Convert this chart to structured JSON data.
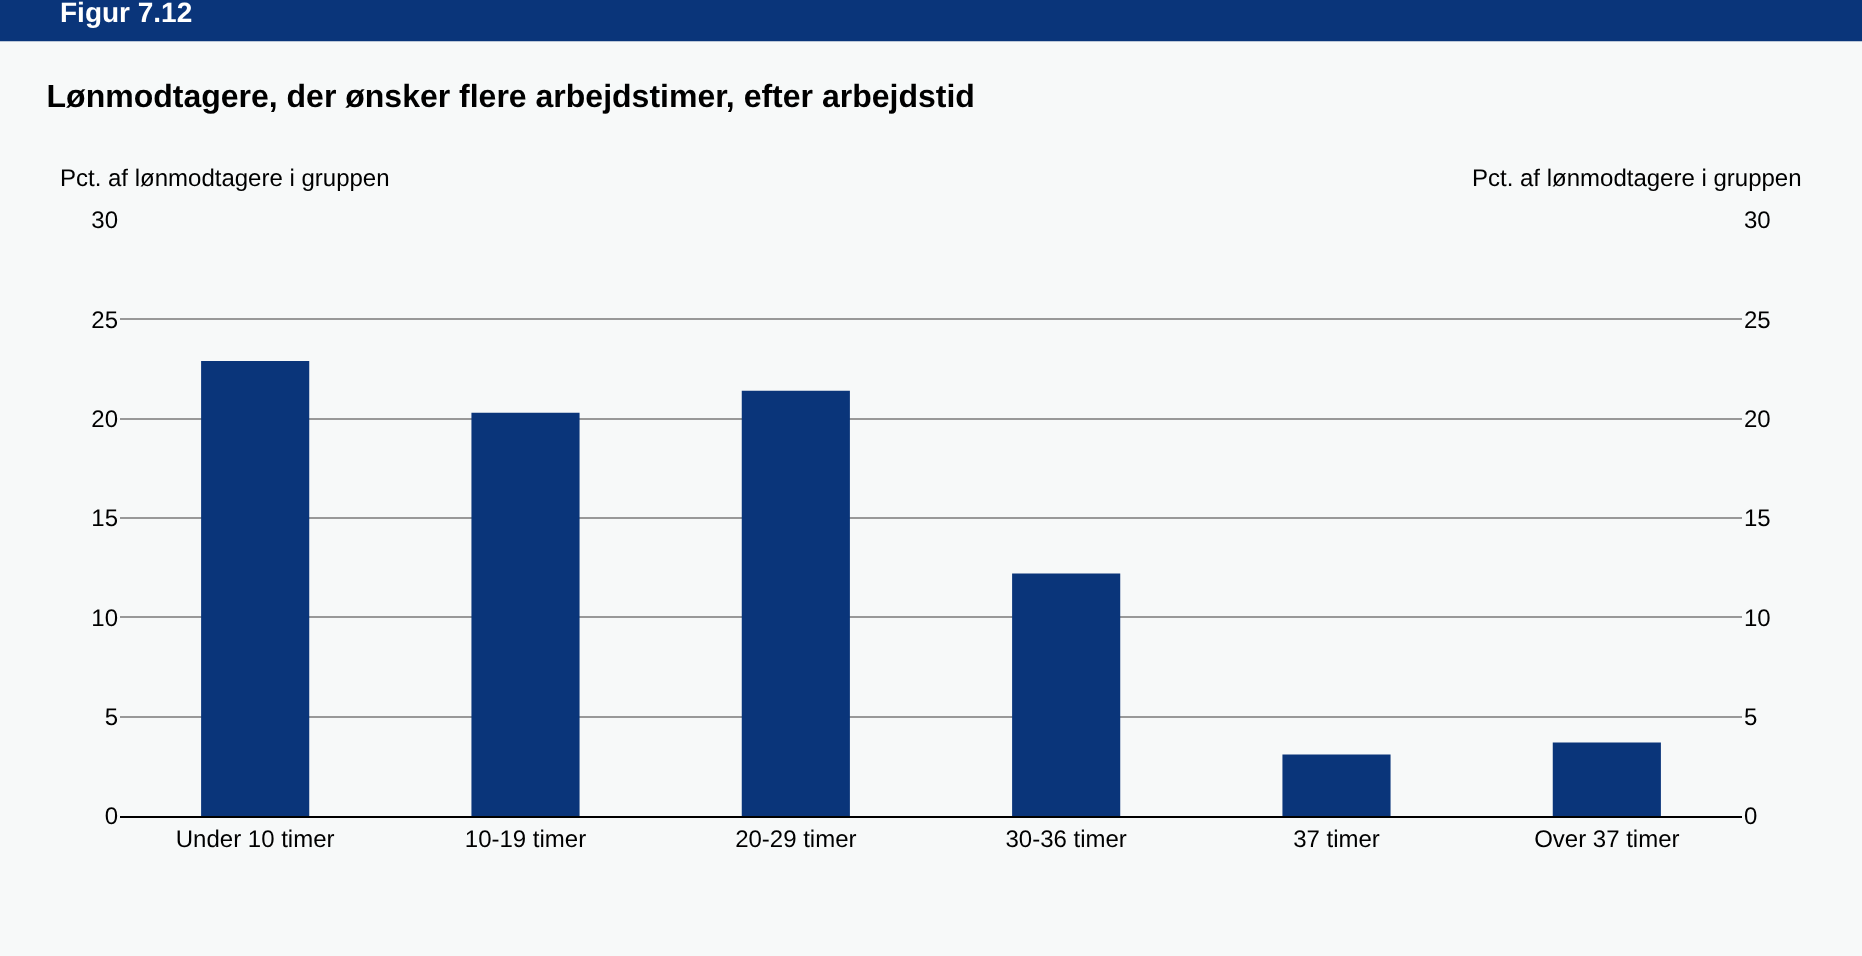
{
  "chart_data": {
    "type": "bar",
    "title": "Lønmodtagere, der ønsker flere arbejdstimer, efter arbejdstid",
    "annotations": [
      "Figur 7.12"
    ],
    "ylabel": "Pct. af lønmodtagere i gruppen",
    "y2label": "Pct. af lønmodtagere i gruppen",
    "categories": [
      "Under 10 timer",
      "10-19 timer",
      "20-29 timer",
      "30-36 timer",
      "37 timer",
      "Over 37 timer"
    ],
    "values": [
      22.9,
      20.3,
      21.4,
      12.2,
      3.1,
      3.7
    ],
    "color": "#0a357a",
    "ylim": [
      0,
      30
    ],
    "yticks": [
      0,
      5,
      10,
      15,
      20,
      25,
      30
    ],
    "y2lim": [
      0,
      30
    ],
    "y2ticks": [
      0,
      5,
      10,
      15,
      20,
      25,
      30
    ],
    "grid": "y",
    "legend": false
  }
}
